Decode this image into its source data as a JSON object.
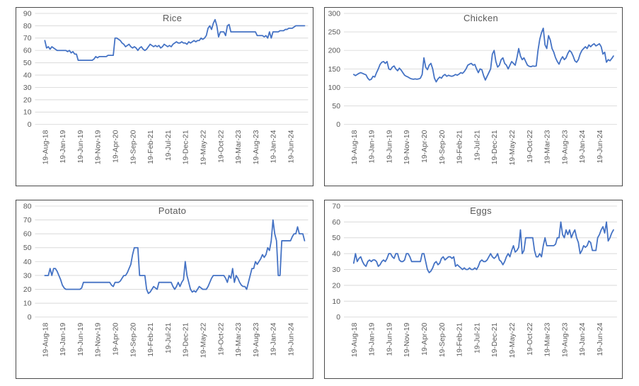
{
  "colors": {
    "series_line": "#4472C4",
    "gridline": "#D9D9D9",
    "tick_text": "#595959",
    "title_text": "#595959",
    "chart_border": "#4a4a4a",
    "background": "#ffffff"
  },
  "x_axis": {
    "tick_labels": [
      "19-Aug-18",
      "19-Jan-19",
      "19-Jun-19",
      "19-Nov-19",
      "19-Apr-20",
      "19-Sep-20",
      "19-Feb-21",
      "19-Jul-21",
      "19-Dec-21",
      "19-May-22",
      "19-Oct-22",
      "19-Mar-23",
      "19-Aug-23",
      "19-Jan-24",
      "19-Jun-24"
    ]
  },
  "chart_data": [
    {
      "id": "rice",
      "type": "line",
      "title": "Rice",
      "ylim": [
        0,
        90
      ],
      "yticks": [
        0,
        10,
        20,
        30,
        40,
        50,
        60,
        70,
        80,
        90
      ],
      "grid": true,
      "legend": "none",
      "x_tick_labels": [
        "19-Aug-18",
        "19-Jan-19",
        "19-Jun-19",
        "19-Nov-19",
        "19-Apr-20",
        "19-Sep-20",
        "19-Feb-21",
        "19-Jul-21",
        "19-Dec-21",
        "19-May-22",
        "19-Oct-22",
        "19-Mar-23",
        "19-Aug-23",
        "19-Jan-24",
        "19-Jun-24"
      ],
      "series": [
        {
          "name": "Rice",
          "values": [
            68,
            62,
            63,
            61,
            63,
            62,
            61,
            60,
            60,
            60,
            60,
            60,
            60,
            59,
            60,
            58,
            59,
            57,
            57,
            52,
            52,
            52,
            52,
            52,
            52,
            52,
            52,
            52,
            53,
            55,
            54,
            55,
            55,
            55,
            55,
            55,
            56,
            56,
            56,
            56,
            70,
            70,
            69,
            68,
            66,
            65,
            63,
            64,
            65,
            63,
            62,
            63,
            62,
            60,
            62,
            63,
            61,
            60,
            61,
            63,
            65,
            64,
            63,
            64,
            63,
            64,
            62,
            63,
            65,
            64,
            63,
            64,
            63,
            65,
            66,
            67,
            66,
            66,
            67,
            66,
            66,
            65,
            67,
            66,
            67,
            68,
            67,
            68,
            68,
            70,
            69,
            70,
            72,
            78,
            80,
            77,
            82,
            85,
            80,
            71,
            75,
            75,
            75,
            72,
            80,
            81,
            75,
            75,
            75,
            75,
            75,
            75,
            75,
            75,
            75,
            75,
            75,
            75,
            75,
            75,
            75,
            72,
            72,
            72,
            72,
            71,
            72,
            70,
            75,
            70,
            75,
            75,
            75,
            75,
            76,
            76,
            76,
            77,
            77,
            78,
            78,
            78,
            79,
            80,
            80,
            80,
            80,
            80,
            80
          ]
        }
      ]
    },
    {
      "id": "chicken",
      "type": "line",
      "title": "Chicken",
      "ylim": [
        0,
        300
      ],
      "yticks": [
        0,
        50,
        100,
        150,
        200,
        250,
        300
      ],
      "grid": true,
      "legend": "none",
      "x_tick_labels": [
        "19-Aug-18",
        "19-Jan-19",
        "19-Jun-19",
        "19-Nov-19",
        "19-Apr-20",
        "19-Sep-20",
        "19-Feb-21",
        "19-Jul-21",
        "19-Dec-21",
        "19-May-22",
        "19-Oct-22",
        "19-Mar-23",
        "19-Aug-23",
        "19-Jan-24",
        "19-Jun-24"
      ],
      "series": [
        {
          "name": "Chicken",
          "values": [
            135,
            132,
            135,
            138,
            140,
            138,
            136,
            134,
            125,
            120,
            122,
            130,
            128,
            140,
            150,
            162,
            168,
            170,
            165,
            170,
            150,
            148,
            155,
            158,
            150,
            145,
            152,
            147,
            140,
            133,
            130,
            128,
            125,
            123,
            122,
            123,
            122,
            123,
            125,
            135,
            180,
            155,
            148,
            160,
            165,
            150,
            125,
            115,
            123,
            128,
            125,
            132,
            135,
            130,
            133,
            131,
            130,
            132,
            135,
            133,
            136,
            140,
            138,
            143,
            150,
            160,
            163,
            165,
            160,
            162,
            150,
            140,
            150,
            148,
            132,
            120,
            130,
            140,
            150,
            190,
            200,
            170,
            155,
            160,
            175,
            180,
            165,
            160,
            150,
            160,
            170,
            165,
            160,
            180,
            205,
            185,
            175,
            180,
            170,
            160,
            157,
            156,
            158,
            157,
            158,
            200,
            230,
            248,
            260,
            215,
            205,
            240,
            228,
            205,
            195,
            180,
            170,
            163,
            175,
            183,
            175,
            180,
            192,
            200,
            195,
            185,
            172,
            168,
            175,
            190,
            200,
            205,
            210,
            205,
            215,
            210,
            215,
            218,
            212,
            215,
            218,
            210,
            190,
            195,
            168,
            175,
            172,
            178,
            185
          ]
        }
      ]
    },
    {
      "id": "potato",
      "type": "line",
      "title": "Potato",
      "ylim": [
        0,
        80
      ],
      "yticks": [
        0,
        10,
        20,
        30,
        40,
        50,
        60,
        70,
        80
      ],
      "grid": true,
      "legend": "none",
      "x_tick_labels": [
        "19-Aug-18",
        "19-Jan-19",
        "19-Jun-19",
        "19-Nov-19",
        "19-Apr-20",
        "19-Sep-20",
        "19-Feb-21",
        "19-Jul-21",
        "19-Dec-21",
        "19-May-22",
        "19-Oct-22",
        "19-Mar-23",
        "19-Aug-23",
        "19-Jan-24",
        "19-Jun-24"
      ],
      "series": [
        {
          "name": "Potato",
          "values": [
            30,
            30,
            30,
            35,
            30,
            35,
            35,
            33,
            30,
            27,
            23,
            21,
            20,
            20,
            20,
            20,
            20,
            20,
            20,
            20,
            20,
            21,
            25,
            25,
            25,
            25,
            25,
            25,
            25,
            25,
            25,
            25,
            25,
            25,
            25,
            25,
            25,
            25,
            23,
            22,
            25,
            25,
            25,
            26,
            28,
            30,
            30,
            32,
            35,
            38,
            45,
            50,
            50,
            50,
            30,
            30,
            30,
            30,
            20,
            17,
            18,
            20,
            22,
            21,
            20,
            25,
            25,
            25,
            25,
            25,
            25,
            25,
            25,
            22,
            20,
            22,
            25,
            22,
            25,
            27,
            40,
            30,
            25,
            20,
            18,
            19,
            18,
            20,
            22,
            21,
            20,
            20,
            20,
            22,
            25,
            28,
            30,
            30,
            30,
            30,
            30,
            30,
            30,
            28,
            25,
            30,
            28,
            35,
            25,
            30,
            28,
            25,
            23,
            22,
            22,
            20,
            25,
            30,
            35,
            35,
            40,
            38,
            40,
            42,
            45,
            43,
            45,
            50,
            48,
            55,
            70,
            60,
            55,
            30,
            30,
            55,
            55,
            55,
            55,
            55,
            55,
            58,
            60,
            60,
            65,
            60,
            60,
            60,
            55
          ]
        }
      ]
    },
    {
      "id": "eggs",
      "type": "line",
      "title": "Eggs",
      "ylim": [
        0,
        70
      ],
      "yticks": [
        0,
        10,
        20,
        30,
        40,
        50,
        60,
        70
      ],
      "grid": true,
      "legend": "none",
      "x_tick_labels": [
        "19-Aug-18",
        "19-Jan-19",
        "19-Jun-19",
        "19-Nov-19",
        "19-Apr-20",
        "19-Sep-20",
        "19-Feb-21",
        "19-Jul-21",
        "19-Dec-21",
        "19-May-22",
        "19-Oct-22",
        "19-Mar-23",
        "19-Aug-23",
        "19-Jan-24",
        "19-Jun-24"
      ],
      "series": [
        {
          "name": "Eggs",
          "values": [
            34,
            40,
            35,
            37,
            38,
            35,
            33,
            32,
            35,
            36,
            35,
            36,
            36,
            35,
            32,
            33,
            35,
            36,
            35,
            37,
            40,
            40,
            38,
            37,
            40,
            40,
            36,
            35,
            35,
            36,
            40,
            40,
            38,
            35,
            35,
            35,
            35,
            35,
            35,
            40,
            40,
            35,
            30,
            28,
            29,
            31,
            34,
            35,
            33,
            34,
            37,
            38,
            36,
            37,
            38,
            38,
            37,
            38,
            32,
            33,
            32,
            31,
            30,
            31,
            30,
            30,
            31,
            30,
            30,
            31,
            30,
            32,
            35,
            36,
            35,
            35,
            36,
            38,
            40,
            38,
            37,
            38,
            40,
            36,
            35,
            33,
            35,
            38,
            40,
            38,
            42,
            45,
            41,
            42,
            44,
            55,
            40,
            42,
            50,
            50,
            50,
            50,
            50,
            42,
            38,
            38,
            40,
            38,
            45,
            50,
            45,
            45,
            45,
            45,
            45,
            46,
            50,
            50,
            60,
            52,
            50,
            55,
            52,
            55,
            50,
            53,
            55,
            50,
            47,
            40,
            42,
            45,
            44,
            45,
            48,
            47,
            42,
            42,
            42,
            50,
            52,
            55,
            57,
            53,
            60,
            48,
            50,
            53,
            55
          ]
        }
      ]
    }
  ]
}
